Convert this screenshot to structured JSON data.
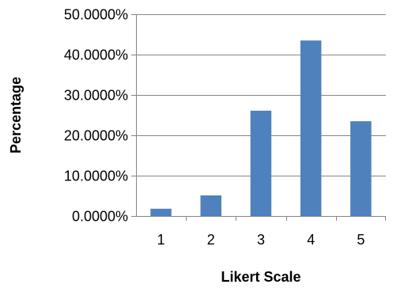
{
  "chart_data": {
    "type": "bar",
    "categories": [
      "1",
      "2",
      "3",
      "4",
      "5"
    ],
    "values": [
      1.8,
      5.1,
      26.1,
      43.5,
      23.5
    ],
    "title": "",
    "xlabel": "Likert Scale",
    "ylabel": "Percentage",
    "ylim": [
      0,
      50
    ],
    "yticks": [
      0,
      10,
      20,
      30,
      40,
      50
    ],
    "ytick_labels": [
      "0.0000%",
      "10.0000%",
      "20.0000%",
      "30.0000%",
      "40.0000%",
      "50.0000%"
    ],
    "grid": true,
    "legend": false,
    "colors": {
      "bar": "#4F81BD",
      "grid": "#868686",
      "axis": "#868686"
    }
  }
}
